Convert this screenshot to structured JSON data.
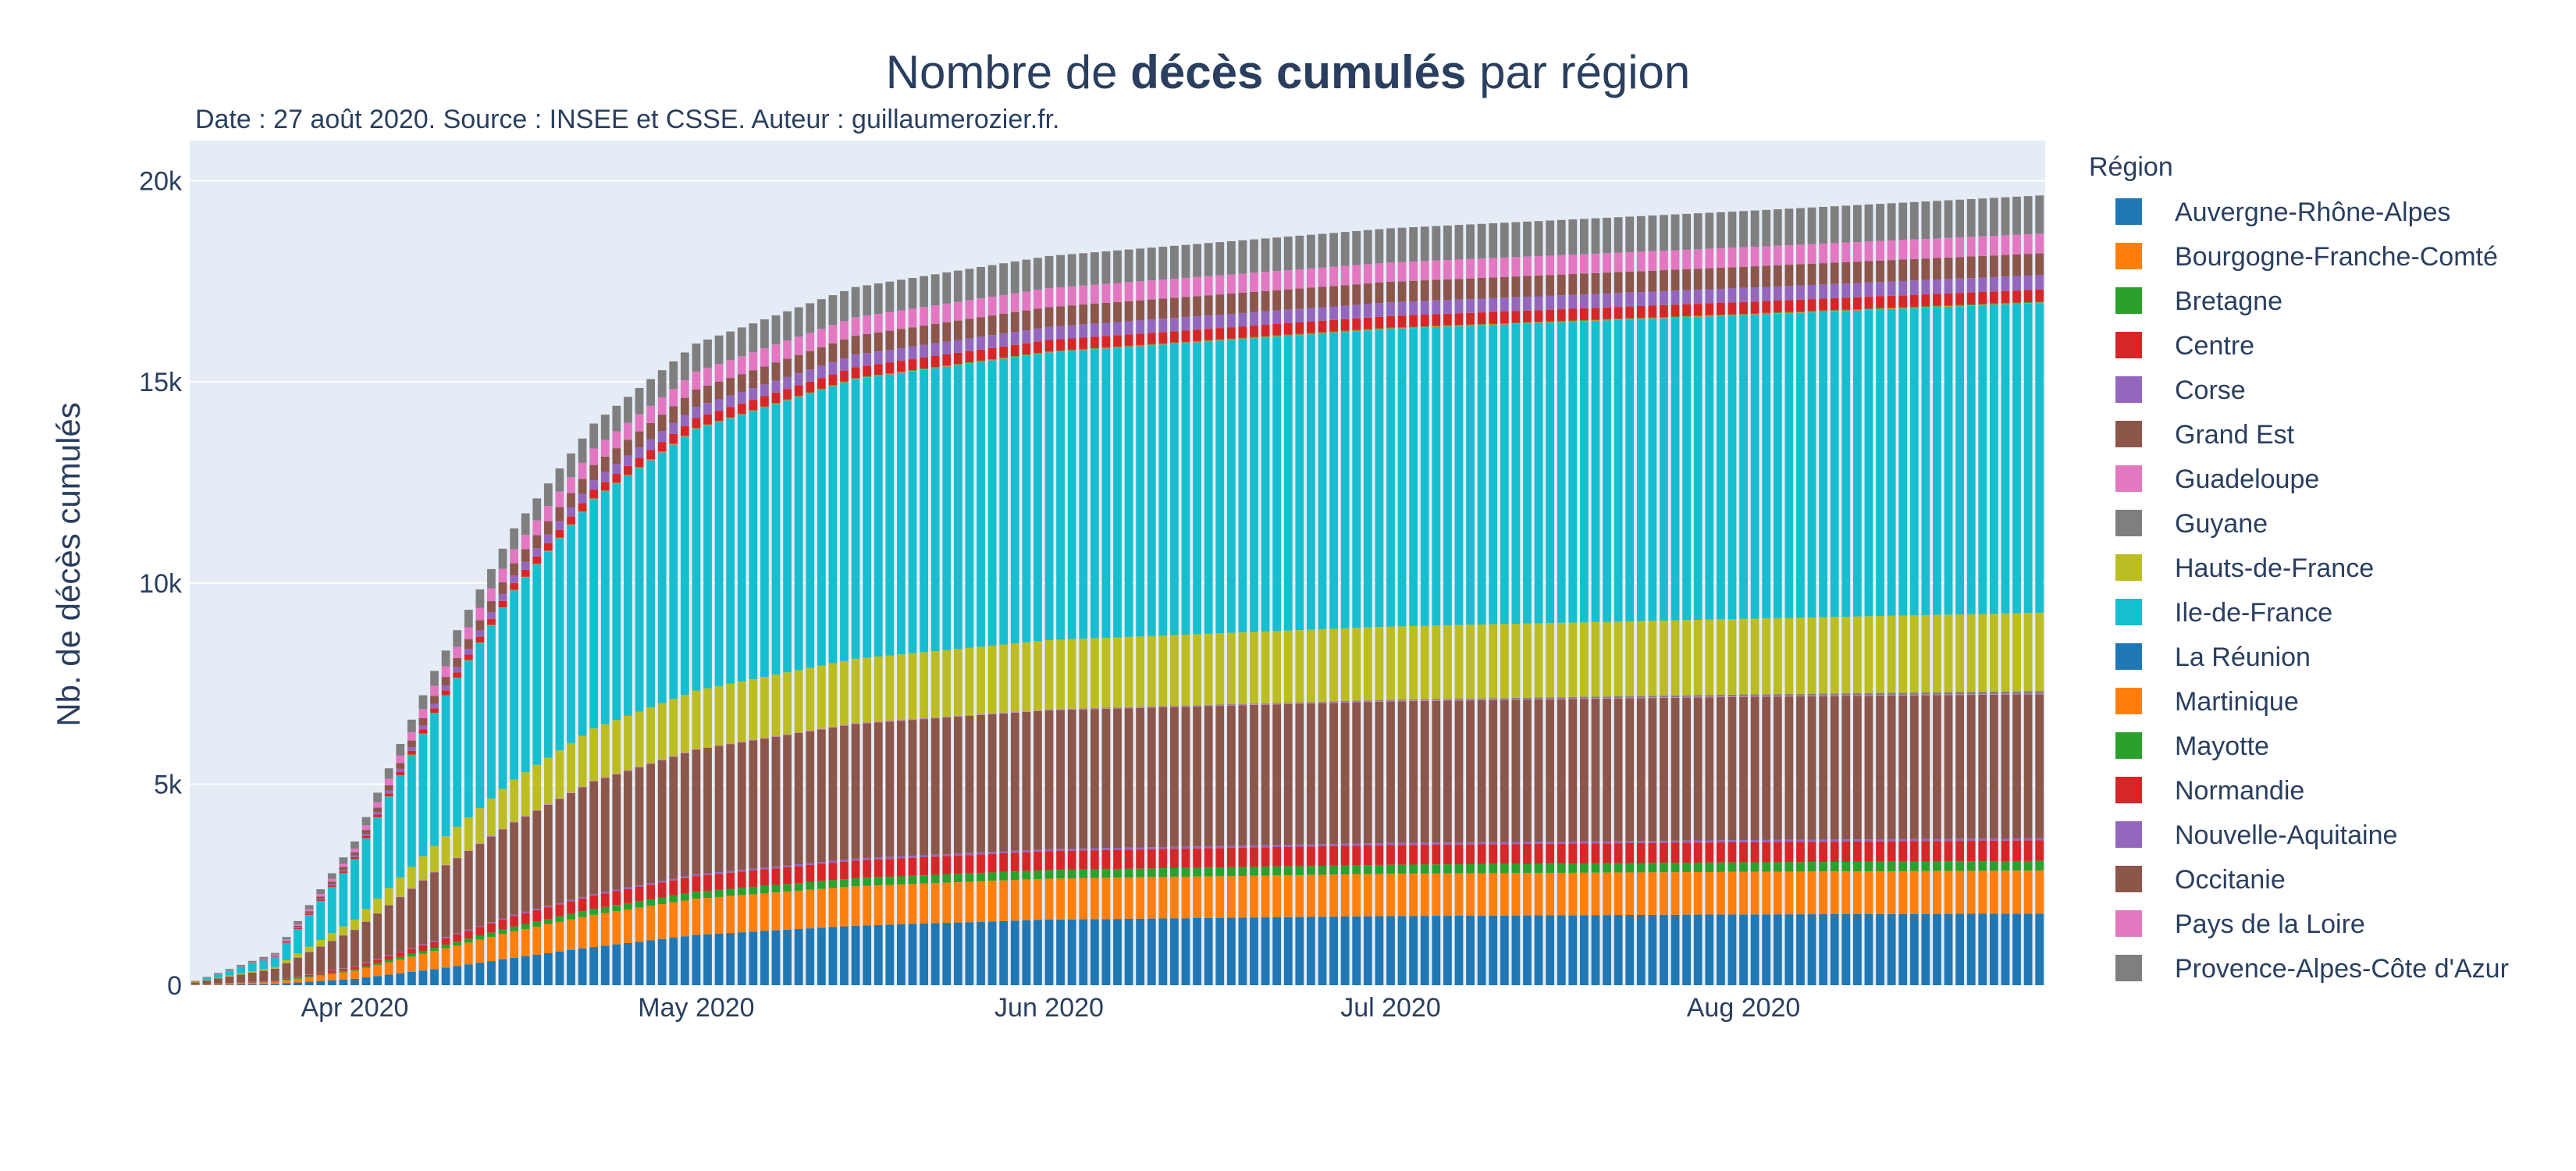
{
  "chart_data": {
    "type": "bar",
    "stacked": true,
    "title_parts": {
      "before": "Nombre de ",
      "bold": "décès cumulés",
      "after": " par région"
    },
    "subtitle": "Date : 27 août 2020. Source : INSEE et CSSE. Auteur : guillaumerozier.fr.",
    "xlabel": "",
    "ylabel": "Nb. de décès cumulés",
    "x_range": [
      "2020-03-18",
      "2020-08-27"
    ],
    "ylim": [
      0,
      21000
    ],
    "y_ticks": [
      {
        "value": 0,
        "label": "0"
      },
      {
        "value": 5000,
        "label": "5k"
      },
      {
        "value": 10000,
        "label": "10k"
      },
      {
        "value": 15000,
        "label": "15k"
      },
      {
        "value": 20000,
        "label": "20k"
      }
    ],
    "x_ticks": [
      {
        "date": "2020-04-01",
        "label": "Apr 2020"
      },
      {
        "date": "2020-05-01",
        "label": "May 2020"
      },
      {
        "date": "2020-06-01",
        "label": "Jun 2020"
      },
      {
        "date": "2020-07-01",
        "label": "Jul 2020"
      },
      {
        "date": "2020-08-01",
        "label": "Aug 2020"
      }
    ],
    "grid": true,
    "legend_title": "Région",
    "legend_position": "right",
    "checkpoint_dates": [
      "2020-03-18",
      "2020-03-25",
      "2020-04-01",
      "2020-04-08",
      "2020-04-15",
      "2020-04-22",
      "2020-05-01",
      "2020-05-15",
      "2020-06-01",
      "2020-07-01",
      "2020-08-01",
      "2020-08-27"
    ],
    "series": [
      {
        "name": "Auvergne-Rhône-Alpes",
        "color": "#1f77b4",
        "values": [
          5,
          30,
          160,
          400,
          680,
          950,
          1250,
          1480,
          1630,
          1720,
          1760,
          1780
        ]
      },
      {
        "name": "Bourgogne-Franche-Comté",
        "color": "#ff7f0e",
        "values": [
          5,
          50,
          200,
          450,
          660,
          800,
          900,
          980,
          1020,
          1050,
          1060,
          1070
        ]
      },
      {
        "name": "Bretagne",
        "color": "#2ca02c",
        "values": [
          0,
          10,
          40,
          80,
          120,
          150,
          175,
          200,
          215,
          225,
          235,
          240
        ]
      },
      {
        "name": "Centre",
        "color": "#d62728",
        "values": [
          2,
          15,
          60,
          150,
          260,
          330,
          390,
          440,
          470,
          490,
          500,
          510
        ]
      },
      {
        "name": "Corse",
        "color": "#9467bd",
        "values": [
          1,
          5,
          15,
          25,
          32,
          38,
          43,
          47,
          50,
          52,
          53,
          54
        ]
      },
      {
        "name": "Grand Est",
        "color": "#8c564b",
        "values": [
          60,
          300,
          900,
          1700,
          2300,
          2800,
          3100,
          3350,
          3450,
          3520,
          3560,
          3580
        ]
      },
      {
        "name": "Guadeloupe",
        "color": "#e377c2",
        "values": [
          0,
          2,
          5,
          8,
          10,
          12,
          13,
          14,
          14,
          15,
          15,
          16
        ]
      },
      {
        "name": "Guyane",
        "color": "#7f7f7f",
        "values": [
          0,
          0,
          1,
          2,
          2,
          3,
          4,
          5,
          10,
          25,
          45,
          60
        ]
      },
      {
        "name": "Hauts-de-France",
        "color": "#bcbd22",
        "values": [
          5,
          40,
          250,
          650,
          1050,
          1300,
          1450,
          1600,
          1720,
          1820,
          1880,
          1950
        ]
      },
      {
        "name": "Ile-de-France",
        "color": "#17becf",
        "values": [
          20,
          250,
          1500,
          3300,
          4700,
          5700,
          6500,
          6950,
          7150,
          7400,
          7550,
          7700
        ]
      },
      {
        "name": "La Réunion",
        "color": "#1f77b4",
        "values": [
          0,
          0,
          0,
          0,
          0,
          0,
          1,
          1,
          1,
          1,
          1,
          1
        ]
      },
      {
        "name": "Martinique",
        "color": "#ff7f0e",
        "values": [
          0,
          1,
          3,
          6,
          10,
          13,
          14,
          14,
          14,
          14,
          15,
          15
        ]
      },
      {
        "name": "Mayotte",
        "color": "#2ca02c",
        "values": [
          0,
          0,
          1,
          3,
          5,
          8,
          12,
          15,
          16,
          16,
          17,
          18
        ]
      },
      {
        "name": "Normandie",
        "color": "#d62728",
        "values": [
          1,
          10,
          50,
          110,
          170,
          210,
          250,
          270,
          280,
          290,
          295,
          300
        ]
      },
      {
        "name": "Nouvelle-Aquitaine",
        "color": "#9467bd",
        "values": [
          1,
          10,
          40,
          110,
          190,
          240,
          280,
          310,
          325,
          340,
          350,
          360
        ]
      },
      {
        "name": "Occitanie",
        "color": "#8c564b",
        "values": [
          2,
          20,
          80,
          200,
          300,
          380,
          430,
          470,
          495,
          510,
          525,
          540
        ]
      },
      {
        "name": "Pays de la Loire",
        "color": "#e377c2",
        "values": [
          2,
          20,
          90,
          250,
          350,
          410,
          440,
          460,
          470,
          480,
          485,
          490
        ]
      },
      {
        "name": "Provence-Alpes-Côte d'Azur",
        "color": "#7f7f7f",
        "values": [
          5,
          40,
          180,
          370,
          520,
          620,
          700,
          750,
          800,
          850,
          900,
          950
        ]
      }
    ]
  }
}
